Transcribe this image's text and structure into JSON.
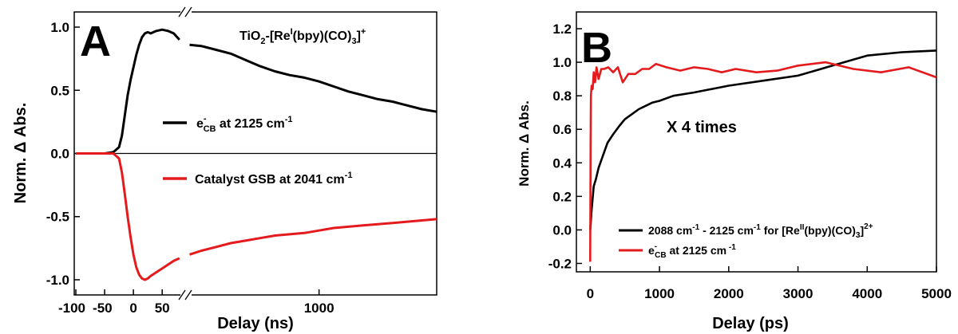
{
  "chart_data": [
    {
      "panel": "A",
      "type": "line",
      "title": "",
      "annotation": {
        "main": "TiO",
        "sub": "2",
        "rest": "-[Re",
        "sup": "I",
        "rest2": "(bpy)(CO)",
        "sub2": "3",
        "rest3": "]",
        "sup2": "+"
      },
      "xlabel": "Delay (ns)",
      "ylabel": "Norm. Δ Abs.",
      "x_axis": "broken (linear -100 to ~90 ns, then compressed 90 to ~1800 ns)",
      "xticks": [
        "-100",
        "-50",
        "0",
        "50",
        "1000"
      ],
      "yticks": [
        "-1.0",
        "-0.5",
        "0.0",
        "0.5",
        "1.0"
      ],
      "ylim": [
        -1.12,
        1.12
      ],
      "zero_line": true,
      "legend_position": "center",
      "series": [
        {
          "name_parts": {
            "pre": "e",
            "sup": "-",
            "sub": "CB",
            "post": " at 2125 cm",
            "sup2": "-1"
          },
          "color": "#000000",
          "x": [
            -100,
            -75,
            -50,
            -35,
            -25,
            -20,
            -15,
            -10,
            -5,
            0,
            5,
            10,
            15,
            20,
            25,
            30,
            40,
            50,
            60,
            70,
            80,
            120,
            200,
            300,
            400,
            500,
            600,
            700,
            800,
            900,
            1000,
            1100,
            1200,
            1300,
            1400,
            1500,
            1600,
            1700,
            1800
          ],
          "values": [
            0.0,
            0.0,
            0.0,
            0.01,
            0.05,
            0.14,
            0.3,
            0.46,
            0.58,
            0.68,
            0.78,
            0.86,
            0.92,
            0.95,
            0.96,
            0.95,
            0.97,
            0.98,
            0.97,
            0.95,
            0.9,
            0.86,
            0.85,
            0.82,
            0.79,
            0.74,
            0.69,
            0.65,
            0.62,
            0.6,
            0.57,
            0.53,
            0.49,
            0.46,
            0.43,
            0.41,
            0.38,
            0.35,
            0.33
          ]
        },
        {
          "name_parts": {
            "pre": "Catalyst GSB at 2041 cm",
            "sup": "-1"
          },
          "color": "#e41a1c",
          "x": [
            -100,
            -75,
            -50,
            -35,
            -25,
            -20,
            -15,
            -10,
            -5,
            0,
            5,
            10,
            15,
            20,
            25,
            30,
            40,
            50,
            60,
            70,
            80,
            120,
            200,
            300,
            400,
            500,
            600,
            700,
            800,
            900,
            1000,
            1100,
            1200,
            1300,
            1400,
            1500,
            1600,
            1700,
            1800
          ],
          "values": [
            0.0,
            0.0,
            0.0,
            0.0,
            -0.04,
            -0.15,
            -0.32,
            -0.5,
            -0.66,
            -0.8,
            -0.9,
            -0.96,
            -0.99,
            -1.0,
            -0.99,
            -0.97,
            -0.94,
            -0.91,
            -0.88,
            -0.85,
            -0.83,
            -0.8,
            -0.77,
            -0.74,
            -0.71,
            -0.69,
            -0.67,
            -0.65,
            -0.64,
            -0.63,
            -0.61,
            -0.59,
            -0.58,
            -0.57,
            -0.56,
            -0.55,
            -0.54,
            -0.53,
            -0.52
          ]
        }
      ]
    },
    {
      "panel": "B",
      "type": "line",
      "title": "",
      "annotation": "X 4 times",
      "xlabel": "Delay (ps)",
      "ylabel": "Norm. Δ Abs.",
      "xlim": [
        -200,
        5000
      ],
      "ylim": [
        -0.25,
        1.3
      ],
      "xticks": [
        "0",
        "1000",
        "2000",
        "3000",
        "4000",
        "5000"
      ],
      "yticks": [
        "-0.2",
        "0.0",
        "0.2",
        "0.4",
        "0.6",
        "0.8",
        "1.0",
        "1.2"
      ],
      "legend_position": "bottom-right",
      "series": [
        {
          "name_parts": {
            "p1": "2088 cm",
            "s1": "-1",
            "p2": " - 2125 cm",
            "s2": "-1",
            "p3": " for [Re",
            "s3": "II",
            "p4": "(bpy)(CO)",
            "b4": "3",
            "p5": "]",
            "s5": "2+"
          },
          "color": "#000000",
          "x": [
            0,
            20,
            50,
            80,
            120,
            180,
            250,
            330,
            420,
            500,
            600,
            700,
            800,
            900,
            1000,
            1200,
            1500,
            2000,
            2500,
            3000,
            3500,
            4000,
            4500,
            5000
          ],
          "values": [
            0.0,
            0.12,
            0.26,
            0.3,
            0.37,
            0.44,
            0.52,
            0.57,
            0.62,
            0.66,
            0.69,
            0.72,
            0.74,
            0.76,
            0.77,
            0.8,
            0.82,
            0.86,
            0.89,
            0.92,
            0.98,
            1.04,
            1.06,
            1.07
          ]
        },
        {
          "name_parts": {
            "pre": "e",
            "sup": "-",
            "sub": "CB",
            "post": " at 2125 cm",
            "sup2": " -1"
          },
          "color": "#e41a1c",
          "x": [
            0,
            5,
            10,
            20,
            35,
            50,
            70,
            90,
            120,
            160,
            200,
            260,
            330,
            400,
            470,
            550,
            650,
            750,
            850,
            950,
            1100,
            1300,
            1500,
            1700,
            1900,
            2100,
            2400,
            2700,
            3000,
            3400,
            3800,
            4200,
            4600,
            5000
          ],
          "values": [
            -0.19,
            0.5,
            0.8,
            0.86,
            0.84,
            0.94,
            0.88,
            0.97,
            0.9,
            0.96,
            0.96,
            0.97,
            0.94,
            0.97,
            0.88,
            0.93,
            0.93,
            0.96,
            0.96,
            0.99,
            0.97,
            0.95,
            0.97,
            0.96,
            0.94,
            0.96,
            0.94,
            0.95,
            0.98,
            1.0,
            0.96,
            0.94,
            0.97,
            0.91
          ]
        }
      ]
    }
  ]
}
